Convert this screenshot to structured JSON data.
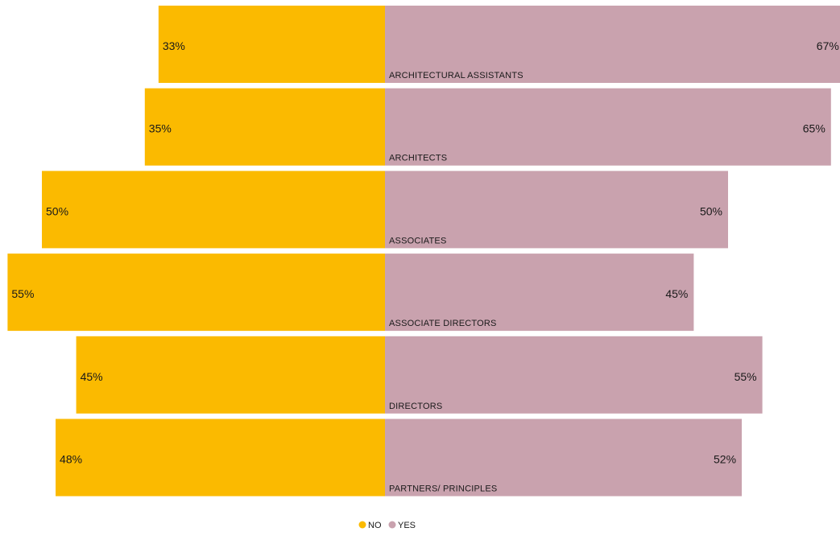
{
  "chart_data": {
    "type": "bar",
    "orientation": "horizontal-diverging",
    "categories": [
      "ARCHITECTURAL ASSISTANTS",
      "ARCHITECTS",
      "ASSOCIATES",
      "ASSOCIATE DIRECTORS",
      "DIRECTORS",
      "PARTNERS/ PRINCIPLES"
    ],
    "series": [
      {
        "name": "NO",
        "color": "#FBBA00",
        "values": [
          33,
          35,
          50,
          55,
          45,
          48
        ],
        "labels": [
          "33%",
          "35%",
          "50%",
          "55%",
          "45%",
          "48%"
        ]
      },
      {
        "name": "YES",
        "color": "#C9A2AE",
        "values": [
          67,
          65,
          50,
          45,
          55,
          52
        ],
        "labels": [
          "67%",
          "65%",
          "50%",
          "45%",
          "55%",
          "52%"
        ]
      }
    ],
    "legend": {
      "position": "bottom-center",
      "items": [
        {
          "label": "NO",
          "color": "#FBBA00"
        },
        {
          "label": "YES",
          "color": "#C9A2AE"
        }
      ]
    },
    "grid": false
  }
}
